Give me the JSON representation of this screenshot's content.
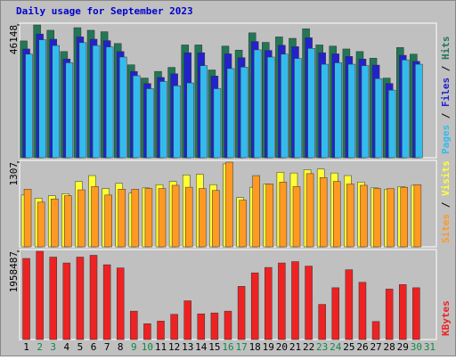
{
  "chart_data": [
    {
      "type": "bar",
      "title": "Daily usage for September 2023",
      "title_color": "#0000cc",
      "legend_separator": " / ",
      "ylim": [
        0,
        46148
      ],
      "yticks": [
        46148
      ],
      "series": [
        {
          "name": "Pages",
          "color": "#33bbee",
          "values": [
            36000,
            41000,
            39000,
            33000,
            40000,
            39000,
            38500,
            35000,
            28500,
            24000,
            26500,
            25000,
            26000,
            32000,
            24000,
            31000,
            31500,
            37500,
            35000,
            36000,
            34500,
            38000,
            32500,
            33000,
            32500,
            32000,
            27500,
            23500,
            34000,
            32500,
            null
          ]
        },
        {
          "name": "Files",
          "color": "#2222cc",
          "values": [
            37800,
            43000,
            41200,
            34300,
            42000,
            41200,
            40700,
            36900,
            30000,
            25800,
            27900,
            29200,
            36500,
            36500,
            28400,
            36100,
            34800,
            40400,
            37300,
            39100,
            38600,
            41700,
            36500,
            36100,
            35200,
            34300,
            32200,
            25800,
            35600,
            33500,
            null
          ]
        },
        {
          "name": "Hits",
          "color": "#227755",
          "values": [
            40600,
            46148,
            44300,
            36900,
            45200,
            44300,
            43800,
            39700,
            32300,
            27700,
            30000,
            31400,
            39200,
            39200,
            30500,
            38800,
            37400,
            43400,
            40100,
            42000,
            41500,
            44800,
            39200,
            38800,
            37800,
            36900,
            34600,
            27700,
            38300,
            36000,
            null
          ]
        }
      ]
    },
    {
      "type": "bar",
      "ylim": [
        0,
        1307
      ],
      "yticks": [
        1307
      ],
      "series": [
        {
          "name": "Sites",
          "color": "#ff9922",
          "values": [
            890,
            690,
            740,
            790,
            880,
            930,
            800,
            890,
            890,
            900,
            900,
            950,
            920,
            900,
            870,
            1307,
            720,
            1100,
            970,
            1000,
            930,
            1130,
            1070,
            1010,
            970,
            950,
            900,
            900,
            920,
            960,
            null
          ]
        },
        {
          "name": "Visits",
          "color": "#ffff33",
          "values": [
            800,
            750,
            790,
            820,
            1010,
            1100,
            900,
            980,
            830,
            910,
            960,
            1010,
            1110,
            1120,
            960,
            1280,
            760,
            920,
            970,
            1150,
            1140,
            1190,
            1200,
            1140,
            1100,
            1000,
            910,
            890,
            930,
            950,
            null
          ]
        }
      ]
    },
    {
      "type": "bar",
      "ylim": [
        0,
        1958487
      ],
      "yticks": [
        1958487
      ],
      "series": [
        {
          "name": "KBytes",
          "color": "#ee2222",
          "values": [
            1800000,
            1958487,
            1830000,
            1700000,
            1830000,
            1870000,
            1660000,
            1590000,
            630000,
            350000,
            410000,
            560000,
            860000,
            570000,
            590000,
            630000,
            1180000,
            1480000,
            1600000,
            1700000,
            1730000,
            1630000,
            780000,
            1150000,
            1550000,
            1270000,
            400000,
            1120000,
            1220000,
            1150000,
            null
          ]
        }
      ],
      "categories": [
        "1",
        "2",
        "3",
        "4",
        "5",
        "6",
        "7",
        "8",
        "9",
        "10",
        "11",
        "12",
        "13",
        "14",
        "15",
        "16",
        "17",
        "18",
        "19",
        "20",
        "21",
        "22",
        "23",
        "24",
        "25",
        "26",
        "27",
        "28",
        "29",
        "30",
        "31"
      ],
      "category_colors": [
        "#000000",
        "#118844",
        "#118844",
        "#000000",
        "#000000",
        "#000000",
        "#000000",
        "#000000",
        "#118844",
        "#118844",
        "#000000",
        "#000000",
        "#000000",
        "#000000",
        "#000000",
        "#118844",
        "#118844",
        "#000000",
        "#000000",
        "#000000",
        "#000000",
        "#000000",
        "#118844",
        "#118844",
        "#000000",
        "#000000",
        "#000000",
        "#000000",
        "#000000",
        "#118844",
        "#118844"
      ]
    }
  ]
}
